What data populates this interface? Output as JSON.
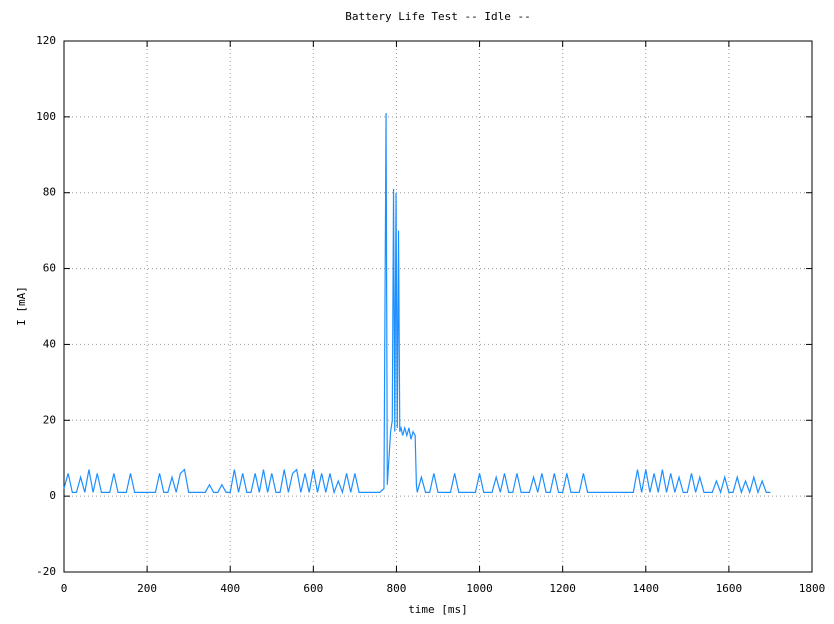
{
  "chart_data": {
    "type": "line",
    "title": "Battery Life Test -- Idle  --",
    "xlabel": "time [ms]",
    "ylabel": "I [mA]",
    "xlim": [
      0,
      1800
    ],
    "xticks": [
      0,
      200,
      400,
      600,
      800,
      1000,
      1200,
      1400,
      1600,
      1800
    ],
    "ylim": [
      -20,
      120
    ],
    "yticks": [
      -20,
      0,
      20,
      40,
      60,
      80,
      100,
      120
    ],
    "grid": true,
    "x": [
      0,
      10,
      20,
      30,
      40,
      50,
      60,
      70,
      80,
      90,
      100,
      110,
      120,
      130,
      140,
      150,
      160,
      170,
      180,
      190,
      200,
      210,
      220,
      230,
      240,
      250,
      260,
      270,
      280,
      290,
      300,
      310,
      320,
      330,
      340,
      350,
      360,
      370,
      380,
      390,
      400,
      410,
      420,
      430,
      440,
      450,
      460,
      470,
      480,
      490,
      500,
      510,
      520,
      530,
      540,
      550,
      560,
      570,
      580,
      590,
      600,
      610,
      620,
      630,
      640,
      650,
      660,
      670,
      680,
      690,
      700,
      710,
      720,
      730,
      740,
      750,
      760,
      770,
      775,
      778,
      782,
      786,
      790,
      793,
      796,
      799,
      802,
      805,
      808,
      811,
      815,
      820,
      825,
      830,
      835,
      840,
      845,
      848,
      850,
      860,
      870,
      880,
      890,
      900,
      910,
      920,
      930,
      940,
      950,
      960,
      970,
      980,
      990,
      1000,
      1010,
      1020,
      1030,
      1040,
      1050,
      1060,
      1070,
      1080,
      1090,
      1100,
      1110,
      1120,
      1130,
      1140,
      1150,
      1160,
      1170,
      1180,
      1190,
      1200,
      1210,
      1220,
      1230,
      1240,
      1250,
      1260,
      1270,
      1280,
      1290,
      1300,
      1310,
      1320,
      1330,
      1340,
      1350,
      1360,
      1370,
      1380,
      1390,
      1400,
      1410,
      1420,
      1430,
      1440,
      1450,
      1460,
      1470,
      1480,
      1490,
      1500,
      1510,
      1520,
      1530,
      1540,
      1550,
      1560,
      1570,
      1580,
      1590,
      1600,
      1610,
      1620,
      1630,
      1640,
      1650,
      1660,
      1670,
      1680,
      1690,
      1700
    ],
    "series": [
      {
        "name": "I",
        "color": "#1e8fff",
        "values": [
          2,
          6,
          1,
          1,
          5,
          1,
          7,
          1,
          6,
          1,
          1,
          1,
          6,
          1,
          1,
          1,
          6,
          1,
          1,
          1,
          1,
          1,
          1,
          6,
          1,
          1,
          5,
          1,
          6,
          7,
          1,
          1,
          1,
          1,
          1,
          3,
          1,
          1,
          3,
          1,
          1,
          7,
          1,
          6,
          1,
          1,
          6,
          1,
          7,
          1,
          6,
          1,
          1,
          7,
          1,
          6,
          7,
          1,
          6,
          1,
          7,
          1,
          6,
          1,
          6,
          1,
          4,
          1,
          6,
          1,
          6,
          1,
          1,
          1,
          1,
          1,
          1,
          2,
          101,
          3,
          10,
          17,
          20,
          81,
          17,
          80,
          18,
          70,
          17,
          18,
          16,
          18,
          16,
          18,
          15,
          17,
          16,
          3,
          1,
          5,
          1,
          1,
          6,
          1,
          1,
          1,
          1,
          6,
          1,
          1,
          1,
          1,
          1,
          6,
          1,
          1,
          1,
          5,
          1,
          6,
          1,
          1,
          6,
          1,
          1,
          1,
          5,
          1,
          6,
          1,
          1,
          6,
          1,
          1,
          6,
          1,
          1,
          1,
          6,
          1,
          1,
          1,
          1,
          1,
          1,
          1,
          1,
          1,
          1,
          1,
          1,
          7,
          1,
          7,
          1,
          6,
          1,
          7,
          1,
          6,
          1,
          5,
          1,
          1,
          6,
          1,
          5,
          1,
          1,
          1,
          4,
          1,
          5,
          1,
          1,
          5,
          1,
          4,
          1,
          5,
          1,
          4,
          1,
          1
        ]
      }
    ]
  }
}
